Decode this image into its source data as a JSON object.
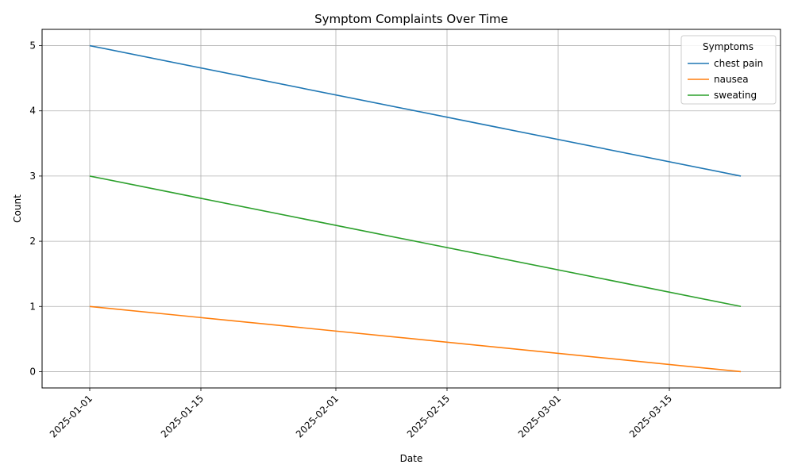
{
  "chart_data": {
    "type": "line",
    "title": "Symptom Complaints Over Time",
    "xlabel": "Date",
    "ylabel": "Count",
    "x": [
      "2025-01-01",
      "2025-03-24"
    ],
    "xlim": [
      "2024-12-26",
      "2025-03-29"
    ],
    "ylim": [
      -0.25,
      5.25
    ],
    "x_ticks": [
      "2025-01-01",
      "2025-01-15",
      "2025-02-01",
      "2025-02-15",
      "2025-03-01",
      "2025-03-15"
    ],
    "y_ticks": [
      0,
      1,
      2,
      3,
      4,
      5
    ],
    "grid": true,
    "legend": {
      "title": "Symptoms",
      "placement": "top-right"
    },
    "series": [
      {
        "name": "chest pain",
        "color": "#1f77b4",
        "values": [
          5,
          3
        ]
      },
      {
        "name": "nausea",
        "color": "#ff7f0e",
        "values": [
          1,
          0
        ]
      },
      {
        "name": "sweating",
        "color": "#2ca02c",
        "values": [
          3,
          1
        ]
      }
    ]
  }
}
